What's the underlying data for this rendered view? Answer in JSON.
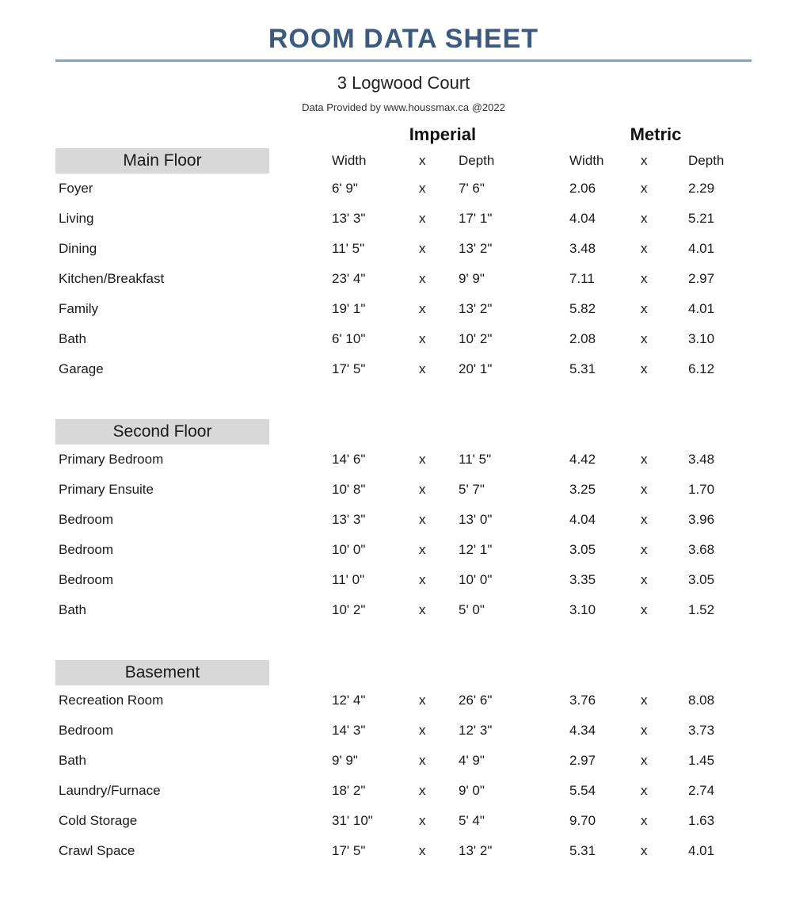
{
  "colors": {
    "title": "#3c5a80",
    "rule": "#7ca4cc",
    "text": "#1a1a1a",
    "section_bg": "#d8d8d8",
    "background": "#ffffff"
  },
  "typography": {
    "title_size_pt": 26,
    "subtitle_size_pt": 17,
    "body_size_pt": 13,
    "font_family": "Verdana, sans-serif"
  },
  "header": {
    "title": "ROOM DATA SHEET",
    "address": "3 Logwood Court",
    "provider": "Data Provided by www.houssmax.ca @2022"
  },
  "unit_headers": {
    "imperial": "Imperial",
    "metric": "Metric"
  },
  "column_headers": {
    "width": "Width",
    "x": "x",
    "depth": "Depth"
  },
  "sections": [
    {
      "name": "Main Floor",
      "rooms": [
        {
          "name": "Foyer",
          "iw": "6' 9\"",
          "id": "7' 6\"",
          "mw": "2.06",
          "md": "2.29"
        },
        {
          "name": "Living",
          "iw": "13' 3\"",
          "id": "17' 1\"",
          "mw": "4.04",
          "md": "5.21"
        },
        {
          "name": "Dining",
          "iw": "11' 5\"",
          "id": "13' 2\"",
          "mw": "3.48",
          "md": "4.01"
        },
        {
          "name": "Kitchen/Breakfast",
          "iw": "23' 4\"",
          "id": "9' 9\"",
          "mw": "7.11",
          "md": "2.97"
        },
        {
          "name": "Family",
          "iw": "19' 1\"",
          "id": "13' 2\"",
          "mw": "5.82",
          "md": "4.01"
        },
        {
          "name": "Bath",
          "iw": "6' 10\"",
          "id": "10' 2\"",
          "mw": "2.08",
          "md": "3.10"
        },
        {
          "name": "Garage",
          "iw": "17' 5\"",
          "id": "20' 1\"",
          "mw": "5.31",
          "md": "6.12"
        }
      ]
    },
    {
      "name": "Second Floor",
      "rooms": [
        {
          "name": "Primary Bedroom",
          "iw": "14' 6\"",
          "id": "11' 5\"",
          "mw": "4.42",
          "md": "3.48"
        },
        {
          "name": "Primary Ensuite",
          "iw": "10' 8\"",
          "id": "5' 7\"",
          "mw": "3.25",
          "md": "1.70"
        },
        {
          "name": "Bedroom",
          "iw": "13' 3\"",
          "id": "13' 0\"",
          "mw": "4.04",
          "md": "3.96"
        },
        {
          "name": "Bedroom",
          "iw": "10' 0\"",
          "id": "12' 1\"",
          "mw": "3.05",
          "md": "3.68"
        },
        {
          "name": "Bedroom",
          "iw": "11' 0\"",
          "id": "10' 0\"",
          "mw": "3.35",
          "md": "3.05"
        },
        {
          "name": "Bath",
          "iw": "10' 2\"",
          "id": "5' 0\"",
          "mw": "3.10",
          "md": "1.52"
        }
      ]
    },
    {
      "name": "Basement",
      "rooms": [
        {
          "name": "Recreation Room",
          "iw": "12' 4\"",
          "id": "26' 6\"",
          "mw": "3.76",
          "md": "8.08"
        },
        {
          "name": "Bedroom",
          "iw": "14' 3\"",
          "id": "12' 3\"",
          "mw": "4.34",
          "md": "3.73"
        },
        {
          "name": "Bath",
          "iw": "9' 9\"",
          "id": "4' 9\"",
          "mw": "2.97",
          "md": "1.45"
        },
        {
          "name": "Laundry/Furnace",
          "iw": "18' 2\"",
          "id": "9' 0\"",
          "mw": "5.54",
          "md": "2.74"
        },
        {
          "name": "Cold Storage",
          "iw": "31' 10\"",
          "id": "5' 4\"",
          "mw": "9.70",
          "md": "1.63"
        },
        {
          "name": "Crawl Space",
          "iw": "17' 5\"",
          "id": "13' 2\"",
          "mw": "5.31",
          "md": "4.01"
        }
      ]
    }
  ]
}
